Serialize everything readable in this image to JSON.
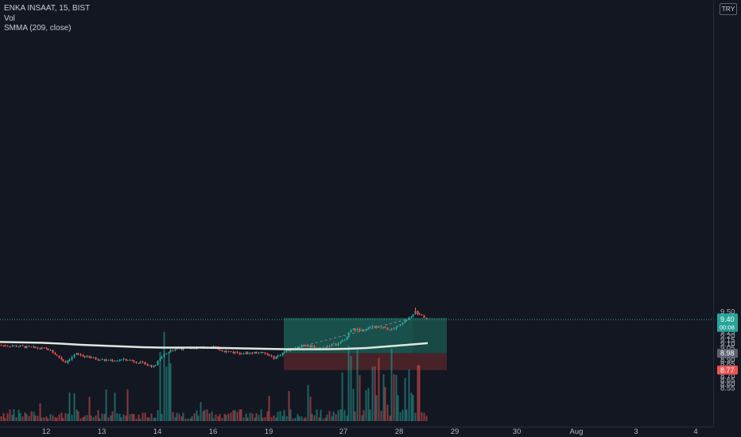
{
  "legend": {
    "symbol_line": "ENKA INSAAT, 15, BIST",
    "volume_label": "Vol",
    "ma_label": "SMMA (209, close)"
  },
  "currency": "TRY",
  "colors": {
    "background": "#131722",
    "up": "#26a69a",
    "down": "#ef5350",
    "ma": "#dde8df",
    "target_zone": "#1c5a52",
    "stop_zone": "#4a2329",
    "current_price_badge": "#26a69a",
    "entry_badge": "#5d6270",
    "stop_badge": "#ef5350"
  },
  "price_badges": {
    "current_price": "9.40",
    "countdown": "00:08",
    "target": "9.42",
    "entry": "8.98",
    "stop": "8.77"
  },
  "chart_data": {
    "type": "candlestick",
    "interval": "15",
    "ylim": [
      8.5,
      9.55
    ],
    "y_ticks": [
      8.55,
      8.6,
      8.65,
      8.7,
      8.75,
      8.8,
      8.85,
      8.9,
      8.95,
      9.0,
      9.05,
      9.1,
      9.15,
      9.2,
      9.25,
      9.3,
      9.35,
      9.4,
      9.45,
      9.5
    ],
    "x_tick_labels": [
      "12",
      "13",
      "14",
      "16",
      "19",
      "27",
      "28",
      "29",
      "30",
      "Aug",
      "3",
      "4"
    ],
    "grid": false,
    "price_line": 9.4,
    "position": {
      "type": "long",
      "entry": 8.98,
      "target": 9.42,
      "stop": 8.77
    },
    "series": [
      {
        "name": "SMMA (209, close)",
        "type": "line",
        "values": [
          9.12,
          9.115,
          9.11,
          9.1,
          9.085,
          9.075,
          9.065,
          9.055,
          9.05,
          9.05,
          9.05,
          9.045,
          9.04,
          9.035,
          9.03,
          9.03,
          9.03,
          9.035,
          9.045,
          9.065,
          9.085,
          9.105
        ]
      }
    ]
  }
}
